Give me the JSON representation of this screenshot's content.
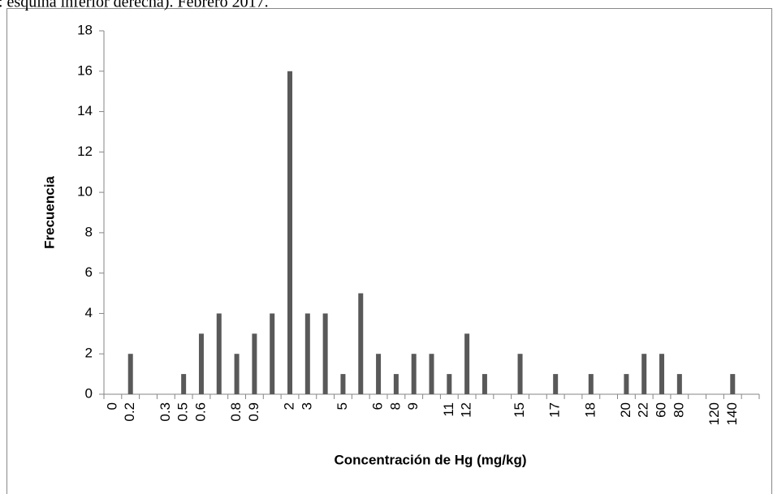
{
  "caption": ": esquina inferior derecha). Febrero 2017.",
  "chart_data": {
    "type": "bar",
    "ylabel": "Frecuencia",
    "xlabel": "Concentración de Hg (mg/kg)",
    "categories": [
      "0",
      "0.2",
      null,
      "0.3",
      "0.5",
      "0.6",
      null,
      "0.8",
      "0.9",
      null,
      "2",
      "3",
      null,
      "5",
      null,
      "6",
      "8",
      "9",
      null,
      "11",
      "12",
      null,
      null,
      "15",
      null,
      "17",
      null,
      "18",
      null,
      "20",
      "22",
      "60",
      "80",
      null,
      "120",
      "140",
      null
    ],
    "values": [
      0,
      2,
      0,
      0,
      1,
      3,
      4,
      2,
      3,
      4,
      16,
      4,
      4,
      1,
      5,
      2,
      1,
      2,
      2,
      1,
      3,
      1,
      0,
      2,
      0,
      1,
      0,
      1,
      0,
      1,
      2,
      2,
      1,
      0,
      0,
      1,
      0
    ],
    "color": "#595959",
    "ylim": [
      0,
      18
    ],
    "yticks": [
      0,
      2,
      4,
      6,
      8,
      10,
      12,
      14,
      16,
      18
    ],
    "grid": false
  }
}
